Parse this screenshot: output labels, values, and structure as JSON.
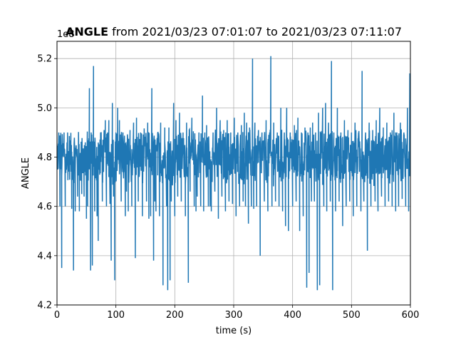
{
  "chart_data": {
    "type": "line",
    "title_bold": "ANGLE",
    "title_rest": " from 2021/03/23 07:01:07 to 2021/03/23 07:11:07",
    "xlabel": "time (s)",
    "ylabel": "ANGLE",
    "offset_label": "1e8",
    "xlim": [
      0,
      600
    ],
    "ylim": [
      4.2,
      5.27
    ],
    "x_ticks": [
      0,
      100,
      200,
      300,
      400,
      500,
      600
    ],
    "y_ticks": [
      4.2,
      4.4,
      4.6,
      4.8,
      5.0,
      5.2
    ],
    "x_tick_labels": [
      "0",
      "100",
      "200",
      "300",
      "400",
      "500",
      "600"
    ],
    "y_tick_labels": [
      "4.2",
      "4.4",
      "4.6",
      "4.8",
      "5.0",
      "5.2"
    ],
    "grid": true,
    "line_color": "#1f77b4",
    "band": {
      "center": 4.8,
      "low": 4.7,
      "high": 4.9
    },
    "spikes": [
      [
        3,
        4.9
      ],
      [
        5,
        4.6
      ],
      [
        8,
        4.35
      ],
      [
        12,
        4.9
      ],
      [
        14,
        4.6
      ],
      [
        18,
        4.9
      ],
      [
        22,
        4.86
      ],
      [
        25,
        4.59
      ],
      [
        28,
        4.34
      ],
      [
        31,
        4.58
      ],
      [
        35,
        4.64
      ],
      [
        38,
        4.58
      ],
      [
        42,
        4.65
      ],
      [
        46,
        4.64
      ],
      [
        48,
        4.86
      ],
      [
        50,
        4.55
      ],
      [
        52,
        4.6
      ],
      [
        55,
        5.08
      ],
      [
        57,
        4.34
      ],
      [
        58,
        4.9
      ],
      [
        60,
        4.36
      ],
      [
        62,
        5.17
      ],
      [
        64,
        4.58
      ],
      [
        68,
        4.56
      ],
      [
        70,
        4.46
      ],
      [
        74,
        4.9
      ],
      [
        77,
        4.62
      ],
      [
        80,
        4.91
      ],
      [
        82,
        4.95
      ],
      [
        84,
        4.6
      ],
      [
        86,
        4.9
      ],
      [
        88,
        4.95
      ],
      [
        90,
        4.61
      ],
      [
        92,
        4.38
      ],
      [
        94,
        5.02
      ],
      [
        96,
        4.64
      ],
      [
        98,
        4.3
      ],
      [
        100,
        4.9
      ],
      [
        103,
        5.0
      ],
      [
        106,
        4.95
      ],
      [
        109,
        4.62
      ],
      [
        112,
        4.9
      ],
      [
        116,
        4.56
      ],
      [
        118,
        4.66
      ],
      [
        121,
        4.58
      ],
      [
        124,
        4.91
      ],
      [
        127,
        4.6
      ],
      [
        130,
        4.94
      ],
      [
        133,
        4.39
      ],
      [
        135,
        4.96
      ],
      [
        138,
        4.62
      ],
      [
        142,
        4.9
      ],
      [
        145,
        4.56
      ],
      [
        148,
        4.88
      ],
      [
        152,
        4.62
      ],
      [
        154,
        4.94
      ],
      [
        156,
        4.55
      ],
      [
        159,
        4.56
      ],
      [
        161,
        5.08
      ],
      [
        164,
        4.38
      ],
      [
        166,
        4.62
      ],
      [
        168,
        4.58
      ],
      [
        171,
        4.9
      ],
      [
        174,
        4.56
      ],
      [
        176,
        4.94
      ],
      [
        180,
        4.28
      ],
      [
        183,
        4.92
      ],
      [
        186,
        4.6
      ],
      [
        188,
        4.26
      ],
      [
        190,
        4.92
      ],
      [
        192,
        4.3
      ],
      [
        194,
        4.62
      ],
      [
        198,
        5.02
      ],
      [
        200,
        4.56
      ],
      [
        202,
        4.95
      ],
      [
        205,
        4.64
      ],
      [
        208,
        4.98
      ],
      [
        211,
        4.62
      ],
      [
        214,
        4.9
      ],
      [
        218,
        4.56
      ],
      [
        220,
        4.94
      ],
      [
        223,
        4.29
      ],
      [
        226,
        4.66
      ],
      [
        229,
        4.96
      ],
      [
        233,
        4.6
      ],
      [
        236,
        4.58
      ],
      [
        238,
        4.64
      ],
      [
        241,
        4.9
      ],
      [
        244,
        4.6
      ],
      [
        247,
        5.05
      ],
      [
        249,
        4.58
      ],
      [
        251,
        4.9
      ],
      [
        254,
        4.93
      ],
      [
        257,
        4.6
      ],
      [
        260,
        4.6
      ],
      [
        262,
        4.58
      ],
      [
        265,
        4.9
      ],
      [
        268,
        4.66
      ],
      [
        271,
        5.0
      ],
      [
        274,
        4.55
      ],
      [
        277,
        4.95
      ],
      [
        280,
        4.64
      ],
      [
        283,
        4.91
      ],
      [
        286,
        4.58
      ],
      [
        289,
        4.95
      ],
      [
        292,
        4.62
      ],
      [
        295,
        4.9
      ],
      [
        298,
        4.61
      ],
      [
        301,
        4.96
      ],
      [
        304,
        4.56
      ],
      [
        307,
        4.9
      ],
      [
        310,
        4.6
      ],
      [
        313,
        4.93
      ],
      [
        316,
        4.62
      ],
      [
        318,
        4.98
      ],
      [
        320,
        4.6
      ],
      [
        322,
        4.94
      ],
      [
        325,
        4.53
      ],
      [
        327,
        4.92
      ],
      [
        330,
        4.6
      ],
      [
        332,
        5.2
      ],
      [
        334,
        4.59
      ],
      [
        336,
        4.94
      ],
      [
        339,
        4.6
      ],
      [
        342,
        4.91
      ],
      [
        345,
        4.4
      ],
      [
        348,
        4.9
      ],
      [
        352,
        4.62
      ],
      [
        355,
        4.95
      ],
      [
        358,
        4.58
      ],
      [
        361,
        4.9
      ],
      [
        363,
        5.21
      ],
      [
        365,
        4.6
      ],
      [
        368,
        4.94
      ],
      [
        371,
        4.62
      ],
      [
        374,
        4.9
      ],
      [
        377,
        4.6
      ],
      [
        380,
        5.0
      ],
      [
        383,
        4.58
      ],
      [
        386,
        4.9
      ],
      [
        388,
        4.52
      ],
      [
        390,
        5.0
      ],
      [
        393,
        4.5
      ],
      [
        396,
        4.9
      ],
      [
        400,
        4.6
      ],
      [
        403,
        4.93
      ],
      [
        406,
        4.62
      ],
      [
        409,
        4.96
      ],
      [
        412,
        4.5
      ],
      [
        415,
        4.9
      ],
      [
        418,
        4.56
      ],
      [
        421,
        4.92
      ],
      [
        424,
        4.27
      ],
      [
        426,
        4.9
      ],
      [
        428,
        4.33
      ],
      [
        430,
        4.92
      ],
      [
        432,
        4.62
      ],
      [
        434,
        4.94
      ],
      [
        437,
        4.62
      ],
      [
        439,
        4.9
      ],
      [
        442,
        4.26
      ],
      [
        444,
        4.98
      ],
      [
        446,
        4.28
      ],
      [
        448,
        4.9
      ],
      [
        451,
        5.0
      ],
      [
        453,
        4.6
      ],
      [
        456,
        5.02
      ],
      [
        458,
        4.58
      ],
      [
        461,
        4.94
      ],
      [
        464,
        4.62
      ],
      [
        466,
        5.19
      ],
      [
        468,
        4.26
      ],
      [
        470,
        4.9
      ],
      [
        473,
        4.58
      ],
      [
        476,
        5.0
      ],
      [
        479,
        4.62
      ],
      [
        482,
        4.9
      ],
      [
        485,
        4.52
      ],
      [
        488,
        4.95
      ],
      [
        491,
        4.6
      ],
      [
        494,
        4.91
      ],
      [
        497,
        4.62
      ],
      [
        500,
        4.9
      ],
      [
        503,
        4.56
      ],
      [
        506,
        4.94
      ],
      [
        509,
        4.6
      ],
      [
        512,
        4.9
      ],
      [
        516,
        4.58
      ],
      [
        518,
        5.15
      ],
      [
        521,
        4.62
      ],
      [
        524,
        4.9
      ],
      [
        527,
        4.42
      ],
      [
        530,
        4.94
      ],
      [
        533,
        4.6
      ],
      [
        536,
        4.91
      ],
      [
        540,
        4.62
      ],
      [
        542,
        4.95
      ],
      [
        545,
        4.58
      ],
      [
        548,
        5.0
      ],
      [
        551,
        4.64
      ],
      [
        554,
        4.92
      ],
      [
        557,
        4.6
      ],
      [
        560,
        4.94
      ],
      [
        563,
        4.62
      ],
      [
        566,
        4.9
      ],
      [
        569,
        4.6
      ],
      [
        572,
        4.98
      ],
      [
        575,
        4.58
      ],
      [
        577,
        4.9
      ],
      [
        580,
        4.6
      ],
      [
        583,
        4.94
      ],
      [
        586,
        4.63
      ],
      [
        589,
        4.9
      ],
      [
        592,
        4.6
      ],
      [
        595,
        5.0
      ],
      [
        597,
        4.58
      ],
      [
        599,
        5.14
      ]
    ]
  }
}
